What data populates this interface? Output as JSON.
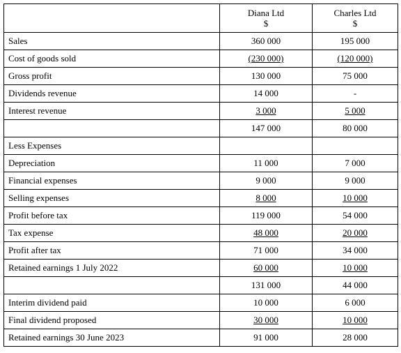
{
  "table": {
    "columns": [
      {
        "name": "Diana Ltd",
        "unit": "$"
      },
      {
        "name": "Charles Ltd",
        "unit": "$"
      }
    ],
    "rows": [
      {
        "label": "Sales",
        "values": [
          "360 000",
          "195 000"
        ],
        "underline": false
      },
      {
        "label": "Cost of goods sold",
        "values": [
          "(230 000)",
          "(120 000)"
        ],
        "underline": true
      },
      {
        "label": "Gross profit",
        "values": [
          "130 000",
          "75 000"
        ],
        "underline": false
      },
      {
        "label": "Dividends revenue",
        "values": [
          "14 000",
          "-"
        ],
        "underline": false
      },
      {
        "label": "Interest revenue",
        "values": [
          "3 000",
          "5 000"
        ],
        "underline": true
      },
      {
        "label": null,
        "values": [
          "147 000",
          "80 000"
        ],
        "underline": false
      },
      {
        "label": "Less Expenses",
        "values": [
          null,
          null
        ],
        "underline": false
      },
      {
        "label": "Depreciation",
        "values": [
          "11 000",
          "7 000"
        ],
        "underline": false
      },
      {
        "label": "Financial expenses",
        "values": [
          "9 000",
          "9 000"
        ],
        "underline": false
      },
      {
        "label": "Selling expenses",
        "values": [
          "8 000",
          "10 000"
        ],
        "underline": true
      },
      {
        "label": "Profit before tax",
        "values": [
          "119 000",
          "54 000"
        ],
        "underline": false
      },
      {
        "label": "Tax expense",
        "values": [
          "48 000",
          "20 000"
        ],
        "underline": true
      },
      {
        "label": "Profit after tax",
        "values": [
          "71 000",
          "34 000"
        ],
        "underline": false
      },
      {
        "label": "Retained earnings 1 July 2022",
        "values": [
          "60 000",
          "10 000"
        ],
        "underline": true
      },
      {
        "label": null,
        "values": [
          "131 000",
          "44 000"
        ],
        "underline": false
      },
      {
        "label": "Interim dividend paid",
        "values": [
          "10 000",
          "6 000"
        ],
        "underline": false
      },
      {
        "label": "Final dividend proposed",
        "values": [
          "30 000",
          "10 000"
        ],
        "underline": true
      },
      {
        "label": "Retained earnings 30 June 2023",
        "values": [
          "91 000",
          "28 000"
        ],
        "underline": false
      }
    ]
  }
}
